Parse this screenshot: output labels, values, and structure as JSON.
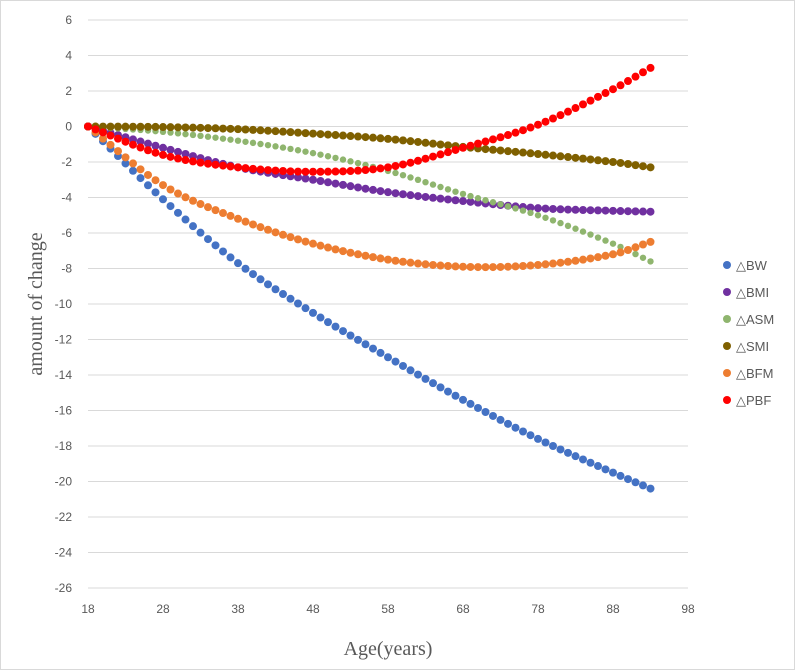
{
  "chart_data": {
    "type": "scatter",
    "xlabel": "Age(years)",
    "ylabel": "amount of change",
    "xlim": [
      18,
      98
    ],
    "ylim": [
      -26,
      6
    ],
    "xticks": [
      18,
      28,
      38,
      48,
      58,
      68,
      78,
      88,
      98
    ],
    "yticks": [
      6,
      4,
      2,
      0,
      -2,
      -4,
      -6,
      -8,
      -10,
      -12,
      -14,
      -16,
      -18,
      -20,
      -22,
      -24,
      -26
    ],
    "grid": "horizontal",
    "legend_position": "right",
    "series": [
      {
        "name": "△BW",
        "color": "#4472C4",
        "x": [
          18,
          93
        ],
        "curve": [
          [
            18,
            0
          ],
          [
            28,
            -4.1
          ],
          [
            38,
            -7.7
          ],
          [
            48,
            -10.5
          ],
          [
            58,
            -13.0
          ],
          [
            68,
            -15.4
          ],
          [
            78,
            -17.6
          ],
          [
            88,
            -19.5
          ],
          [
            93,
            -20.4
          ]
        ]
      },
      {
        "name": "△BMI",
        "color": "#7030A0",
        "x": [
          18,
          93
        ],
        "curve": [
          [
            18,
            0
          ],
          [
            28,
            -1.2
          ],
          [
            38,
            -2.3
          ],
          [
            48,
            -3.0
          ],
          [
            58,
            -3.7
          ],
          [
            68,
            -4.2
          ],
          [
            78,
            -4.6
          ],
          [
            88,
            -4.75
          ],
          [
            93,
            -4.8
          ]
        ]
      },
      {
        "name": "△ASM",
        "color": "#8FB56E",
        "x": [
          18,
          93
        ],
        "curve": [
          [
            18,
            0
          ],
          [
            28,
            -0.3
          ],
          [
            38,
            -0.8
          ],
          [
            48,
            -1.5
          ],
          [
            58,
            -2.5
          ],
          [
            68,
            -3.8
          ],
          [
            78,
            -5.0
          ],
          [
            88,
            -6.6
          ],
          [
            93,
            -7.6
          ]
        ]
      },
      {
        "name": "△SMI",
        "color": "#7F6000",
        "x": [
          18,
          93
        ],
        "curve": [
          [
            18,
            0
          ],
          [
            28,
            -0.03
          ],
          [
            38,
            -0.15
          ],
          [
            48,
            -0.4
          ],
          [
            58,
            -0.7
          ],
          [
            68,
            -1.15
          ],
          [
            78,
            -1.55
          ],
          [
            88,
            -2.0
          ],
          [
            93,
            -2.3
          ]
        ]
      },
      {
        "name": "△BFM",
        "color": "#ED7D31",
        "x": [
          18,
          93
        ],
        "curve": [
          [
            18,
            0
          ],
          [
            28,
            -3.3
          ],
          [
            38,
            -5.2
          ],
          [
            48,
            -6.6
          ],
          [
            58,
            -7.5
          ],
          [
            68,
            -7.9
          ],
          [
            78,
            -7.8
          ],
          [
            88,
            -7.2
          ],
          [
            93,
            -6.5
          ]
        ]
      },
      {
        "name": "△PBF",
        "color": "#FF0000",
        "x": [
          18,
          93
        ],
        "curve": [
          [
            18,
            0
          ],
          [
            28,
            -1.6
          ],
          [
            38,
            -2.3
          ],
          [
            48,
            -2.55
          ],
          [
            58,
            -2.3
          ],
          [
            68,
            -1.2
          ],
          [
            78,
            0.1
          ],
          [
            88,
            2.1
          ],
          [
            93,
            3.3
          ]
        ]
      }
    ]
  }
}
